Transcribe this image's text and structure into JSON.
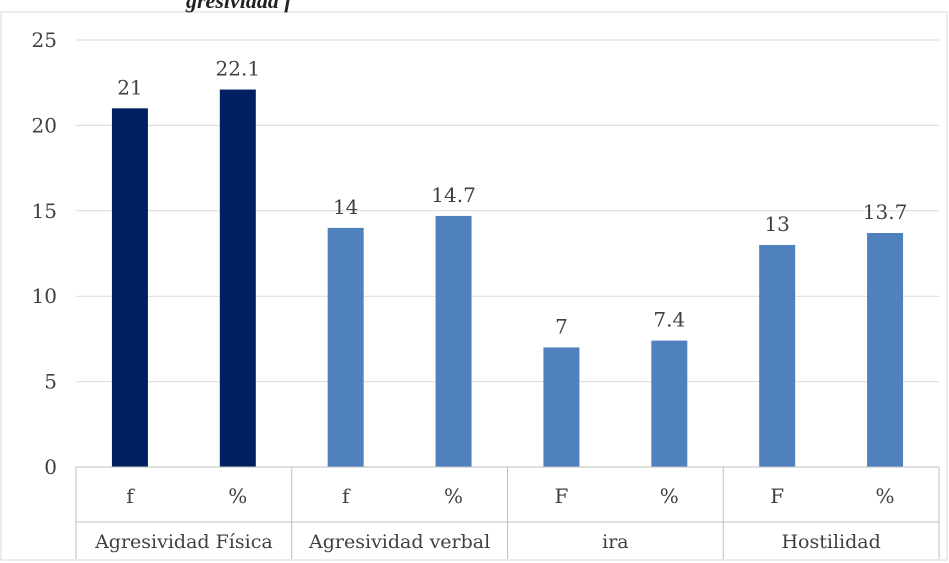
{
  "title": "gresividad f",
  "colors": {
    "highlight": "#002060",
    "normal": "#4F81BD",
    "grid": "#D9D9D9",
    "axis": "#BFBFBF",
    "text": "#404040"
  },
  "chart_data": {
    "type": "bar",
    "groups": [
      {
        "label": "Agresividad Física",
        "bars": [
          {
            "x": "f",
            "value": 21,
            "label": "21",
            "highlight": true
          },
          {
            "x": "%",
            "value": 22.1,
            "label": "22.1",
            "highlight": true
          }
        ]
      },
      {
        "label": "Agresividad verbal",
        "bars": [
          {
            "x": "f",
            "value": 14,
            "label": "14",
            "highlight": false
          },
          {
            "x": "%",
            "value": 14.7,
            "label": "14.7",
            "highlight": false
          }
        ]
      },
      {
        "label": "ira",
        "bars": [
          {
            "x": "F",
            "value": 7,
            "label": "7",
            "highlight": false
          },
          {
            "x": "%",
            "value": 7.4,
            "label": "7.4",
            "highlight": false
          }
        ]
      },
      {
        "label": "Hostilidad",
        "bars": [
          {
            "x": "F",
            "value": 13,
            "label": "13",
            "highlight": false
          },
          {
            "x": "%",
            "value": 13.7,
            "label": "13.7",
            "highlight": false
          }
        ]
      }
    ],
    "yticks": [
      "0",
      "5",
      "10",
      "15",
      "20",
      "25"
    ],
    "ylim": [
      0,
      25
    ],
    "grid": true,
    "legend": "none"
  }
}
